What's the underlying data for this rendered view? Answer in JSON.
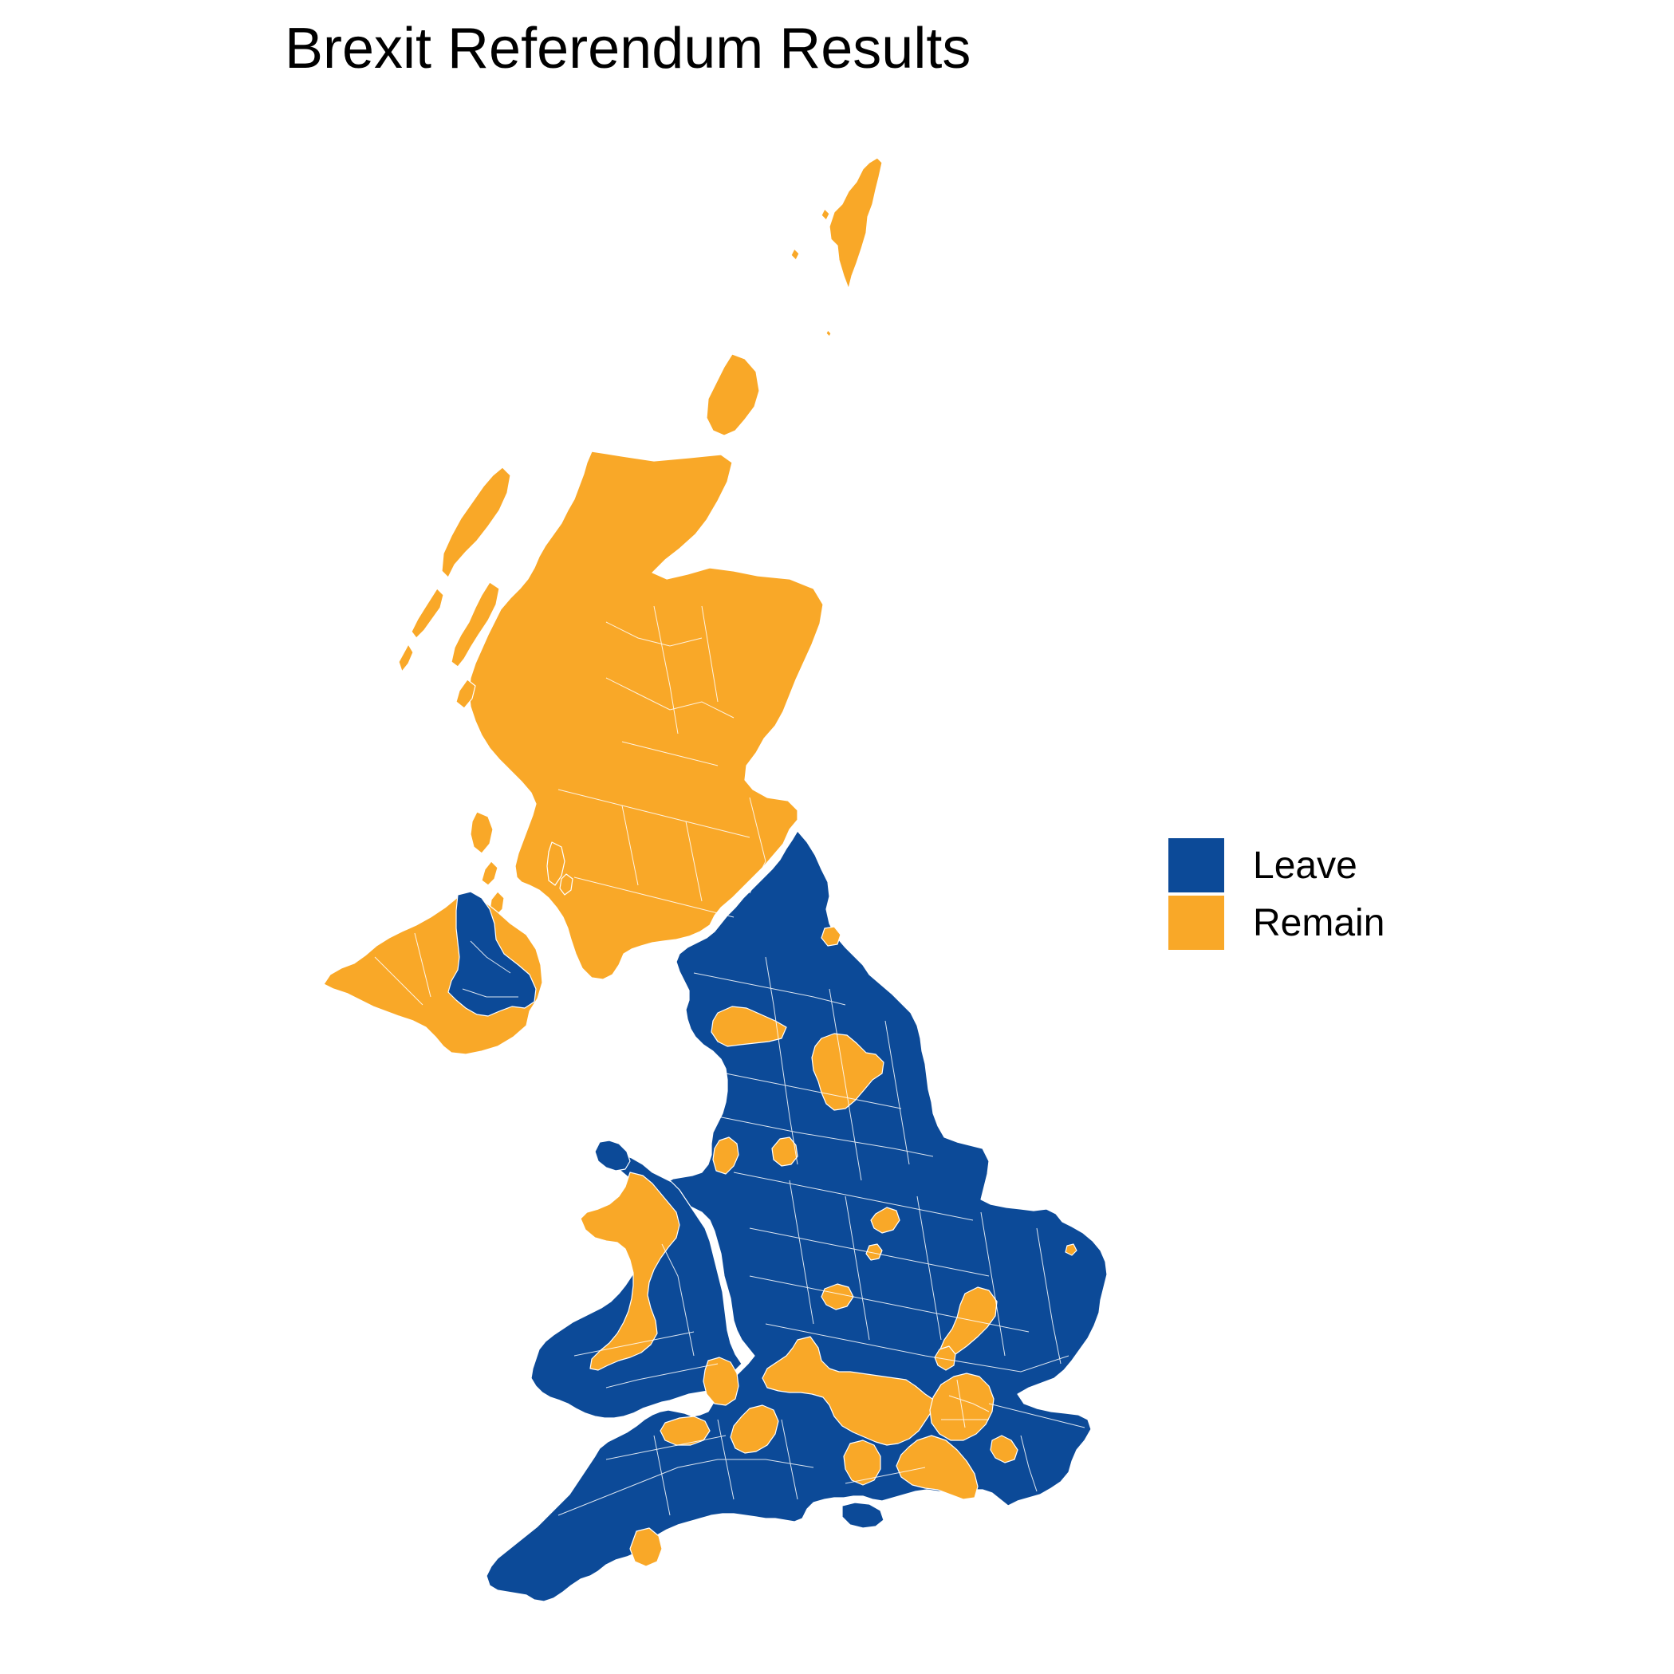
{
  "title": "Brexit Referendum Results",
  "colors": {
    "leave": "#0C4A98",
    "remain": "#F9A828",
    "borders": "#ffffff"
  },
  "legend": [
    {
      "key": "leave",
      "label": "Leave",
      "color": "#0C4A98"
    },
    {
      "key": "remain",
      "label": "Remain",
      "color": "#F9A828"
    }
  ],
  "regions": [
    {
      "name": "Shetland",
      "result": "remain"
    },
    {
      "name": "Orkney",
      "result": "remain"
    },
    {
      "name": "Outer Hebrides",
      "result": "remain"
    },
    {
      "name": "Scotland",
      "result": "remain"
    },
    {
      "name": "Northern Ireland West",
      "result": "remain"
    },
    {
      "name": "Northern Ireland East",
      "result": "leave"
    },
    {
      "name": "England",
      "result": "leave"
    },
    {
      "name": "Wales",
      "result": "leave"
    },
    {
      "name": "Anglesey",
      "result": "leave"
    },
    {
      "name": "Isle of Wight",
      "result": "leave"
    },
    {
      "name": "Gwynedd and Ceredigion",
      "result": "remain"
    },
    {
      "name": "Cardiff and Vale of Glamorgan",
      "result": "remain"
    },
    {
      "name": "Monmouthshire",
      "result": "remain"
    },
    {
      "name": "Newcastle upon Tyne",
      "result": "remain"
    },
    {
      "name": "Carlisle area",
      "result": "remain"
    },
    {
      "name": "Harrogate and York",
      "result": "remain"
    },
    {
      "name": "Manchester and Trafford",
      "result": "remain"
    },
    {
      "name": "Liverpool and Wirral",
      "result": "remain"
    },
    {
      "name": "Nottingham",
      "result": "remain"
    },
    {
      "name": "Leicester",
      "result": "remain"
    },
    {
      "name": "Warwick",
      "result": "remain"
    },
    {
      "name": "Norwich",
      "result": "remain"
    },
    {
      "name": "Cambridge",
      "result": "remain"
    },
    {
      "name": "Oxford and Thames Valley",
      "result": "remain"
    },
    {
      "name": "Bristol and Bath",
      "result": "remain"
    },
    {
      "name": "London",
      "result": "remain"
    },
    {
      "name": "Surrey and Sussex",
      "result": "remain"
    },
    {
      "name": "Winchester",
      "result": "remain"
    },
    {
      "name": "Exeter",
      "result": "remain"
    },
    {
      "name": "Canterbury",
      "result": "remain"
    },
    {
      "name": "St Albans",
      "result": "remain"
    }
  ]
}
